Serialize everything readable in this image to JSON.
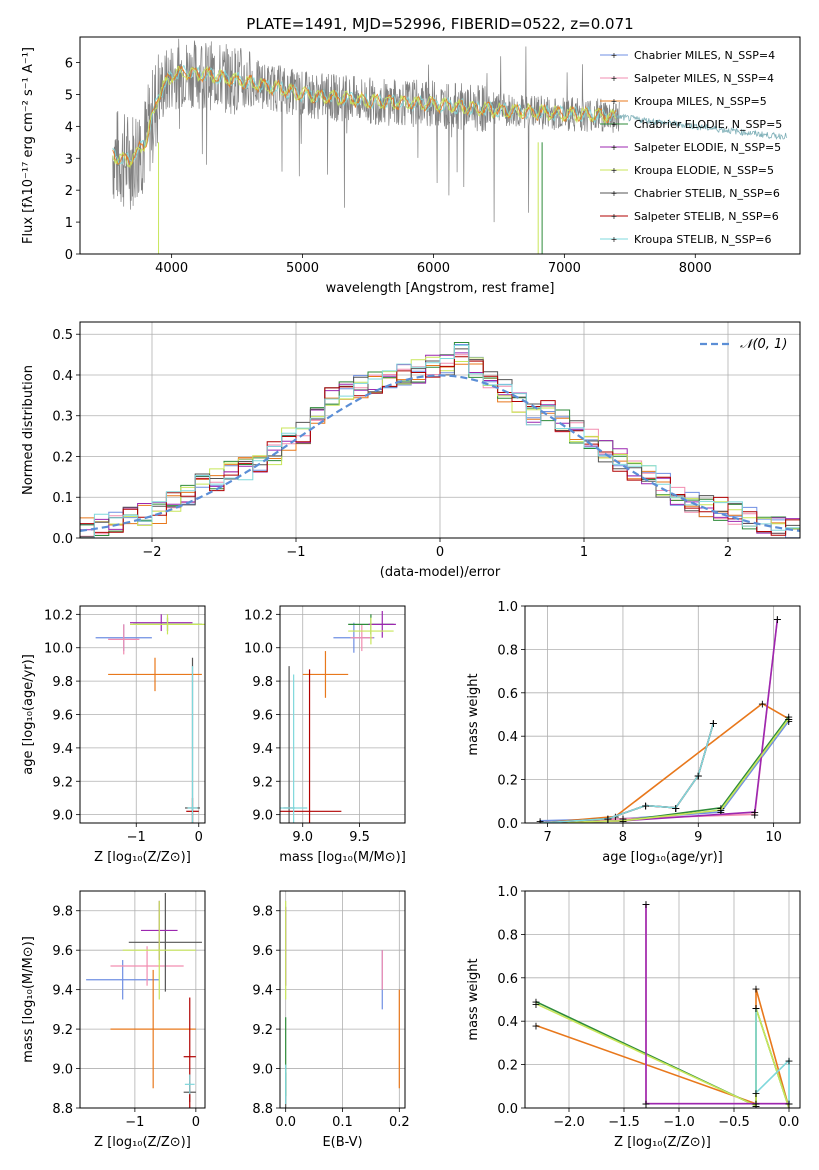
{
  "colors": [
    "#6f8fe3",
    "#f28db0",
    "#e8781c",
    "#2e8b3a",
    "#9c27b0",
    "#c8e65a",
    "#555555",
    "#b00000",
    "#7fd8dc"
  ],
  "chart_data": [
    {
      "id": "spectrum",
      "type": "line",
      "title": "PLATE=1491, MJD=52996, FIBERID=0522, z=0.071",
      "xlabel": "wavelength [Angstrom, rest frame]",
      "ylabel": "Flux [fλ10⁻¹⁷ erg cm⁻² s⁻¹ A⁻¹]",
      "xlim": [
        3300,
        8800
      ],
      "ylim": [
        0,
        6.8
      ],
      "xticks": [
        "4000",
        "5000",
        "6000",
        "7000",
        "8000"
      ],
      "yticks": [
        "0",
        "1",
        "2",
        "3",
        "4",
        "5",
        "6"
      ],
      "legend": [
        "Chabrier MILES, N_SSP=4",
        "Salpeter MILES, N_SSP=4",
        "Kroupa MILES, N_SSP=5",
        "Chabrier ELODIE, N_SSP=5",
        "Salpeter ELODIE, N_SSP=5",
        "Kroupa ELODIE, N_SSP=5",
        "Chabrier STELIB, N_SSP=6",
        "Salpeter STELIB, N_SSP=6",
        "Kroupa STELIB, N_SSP=6"
      ],
      "legend_loc": "upper right",
      "model_continuum": {
        "x": [
          3550,
          3650,
          3700,
          3800,
          3900,
          4000,
          4100,
          4300,
          4500,
          4800,
          5000,
          5500,
          6000,
          6500,
          7000,
          7300,
          7400
        ],
        "y": [
          3.1,
          2.9,
          3.0,
          3.5,
          5.0,
          5.6,
          5.7,
          5.6,
          5.45,
          5.2,
          5.0,
          4.8,
          4.7,
          4.5,
          4.4,
          4.35,
          4.3
        ]
      },
      "observed_extended": {
        "x": [
          7400,
          7600,
          7800,
          8000,
          8200,
          8400,
          8600,
          8700
        ],
        "y": [
          4.3,
          4.2,
          4.1,
          4.0,
          3.9,
          3.8,
          3.7,
          3.7
        ]
      }
    },
    {
      "id": "residuals",
      "type": "line",
      "xlabel": "(data-model)/error",
      "ylabel": "Normed distribution",
      "xlim": [
        -2.5,
        2.5
      ],
      "ylim": [
        0,
        0.53
      ],
      "xticks": [
        "−2",
        "−1",
        "0",
        "1",
        "2"
      ],
      "yticks": [
        "0.0",
        "0.1",
        "0.2",
        "0.3",
        "0.4",
        "0.5"
      ],
      "legend": [
        "𝒩(0, 1)"
      ],
      "legend_loc": "upper right",
      "histogram_centers": [
        -2.45,
        -2.35,
        -2.25,
        -2.15,
        -2.05,
        -1.95,
        -1.85,
        -1.75,
        -1.65,
        -1.55,
        -1.45,
        -1.35,
        -1.25,
        -1.15,
        -1.05,
        -0.95,
        -0.85,
        -0.75,
        -0.65,
        -0.55,
        -0.45,
        -0.35,
        -0.25,
        -0.15,
        -0.05,
        0.05,
        0.15,
        0.25,
        0.35,
        0.45,
        0.55,
        0.65,
        0.75,
        0.85,
        0.95,
        1.05,
        1.15,
        1.25,
        1.35,
        1.45,
        1.55,
        1.65,
        1.75,
        1.85,
        1.95,
        2.05,
        2.15,
        2.25,
        2.35,
        2.45
      ],
      "histogram_values": [
        0.02,
        0.035,
        0.04,
        0.048,
        0.055,
        0.065,
        0.09,
        0.11,
        0.13,
        0.14,
        0.16,
        0.17,
        0.19,
        0.21,
        0.24,
        0.26,
        0.3,
        0.34,
        0.36,
        0.37,
        0.38,
        0.39,
        0.4,
        0.41,
        0.42,
        0.43,
        0.45,
        0.42,
        0.39,
        0.36,
        0.33,
        0.3,
        0.31,
        0.29,
        0.26,
        0.24,
        0.21,
        0.19,
        0.17,
        0.15,
        0.13,
        0.11,
        0.09,
        0.08,
        0.07,
        0.06,
        0.05,
        0.04,
        0.035,
        0.03
      ]
    },
    {
      "id": "age-vs-z",
      "type": "scatter",
      "xlabel": "Z [log₁₀(Z/Z⊙)]",
      "ylabel": "age  [log₁₀(age/yr)]",
      "xlim": [
        -1.9,
        0.1
      ],
      "ylim": [
        8.95,
        10.25
      ],
      "xticks": [
        "−1",
        "0"
      ],
      "xtick_values": [
        -1,
        0
      ],
      "yticks": [
        "9.0",
        "9.2",
        "9.4",
        "9.6",
        "9.8",
        "10.0",
        "10.2"
      ],
      "points": [
        {
          "x": -1.2,
          "y": 10.06,
          "xe": 0.45,
          "ye": 0.08,
          "c": 0
        },
        {
          "x": -1.2,
          "y": 10.05,
          "xe": 0.25,
          "ye": 0.09,
          "c": 1
        },
        {
          "x": -0.7,
          "y": 9.84,
          "xe": 0.75,
          "ye": 0.1,
          "c": 2
        },
        {
          "x": -0.5,
          "y": 10.14,
          "xe": 0.55,
          "ye": 0.04,
          "c": 3
        },
        {
          "x": -0.6,
          "y": 10.15,
          "xe": 0.5,
          "ye": 0.05,
          "c": 4
        },
        {
          "x": -0.5,
          "y": 10.14,
          "xe": 0.6,
          "ye": 0.06,
          "c": 5
        },
        {
          "x": -0.1,
          "y": 9.04,
          "xe": 0.12,
          "ye": 0.9,
          "c": 6
        },
        {
          "x": -0.1,
          "y": 9.02,
          "xe": 0.1,
          "ye": 0.08,
          "c": 7
        },
        {
          "x": -0.1,
          "y": 9.04,
          "xe": 0.08,
          "ye": 0.85,
          "c": 8
        }
      ]
    },
    {
      "id": "age-vs-mass",
      "type": "scatter",
      "xlabel": "mass [log₁₀(M/M⊙)]",
      "ylabel": "",
      "xlim": [
        8.8,
        9.9
      ],
      "ylim": [
        8.95,
        10.25
      ],
      "xticks": [
        "9.0",
        "9.5"
      ],
      "xtick_values": [
        9.0,
        9.5
      ],
      "yticks": [
        "9.0",
        "9.2",
        "9.4",
        "9.6",
        "9.8",
        "10.0",
        "10.2"
      ],
      "points": [
        {
          "x": 9.45,
          "y": 10.06,
          "xe": 0.18,
          "ye": 0.09,
          "c": 0
        },
        {
          "x": 9.52,
          "y": 10.06,
          "xe": 0.1,
          "ye": 0.08,
          "c": 1
        },
        {
          "x": 9.2,
          "y": 9.84,
          "xe": 0.2,
          "ye": 0.14,
          "c": 2
        },
        {
          "x": 9.6,
          "y": 10.14,
          "xe": 0.2,
          "ye": 0.06,
          "c": 3
        },
        {
          "x": 9.7,
          "y": 10.14,
          "xe": 0.12,
          "ye": 0.08,
          "c": 4
        },
        {
          "x": 9.6,
          "y": 10.1,
          "xe": 0.2,
          "ye": 0.08,
          "c": 5
        },
        {
          "x": 8.88,
          "y": 9.04,
          "xe": 0.05,
          "ye": 0.85,
          "c": 6
        },
        {
          "x": 9.06,
          "y": 9.02,
          "xe": 0.28,
          "ye": 0.85,
          "c": 7
        },
        {
          "x": 8.92,
          "y": 9.04,
          "xe": 0.12,
          "ye": 0.8,
          "c": 8
        }
      ]
    },
    {
      "id": "mass-weight-vs-age",
      "type": "line",
      "xlabel": "age  [log₁₀(age/yr)]",
      "ylabel": "mass weight",
      "xlim": [
        6.7,
        10.35
      ],
      "ylim": [
        0,
        1.0
      ],
      "xticks": [
        "7",
        "8",
        "9",
        "10"
      ],
      "xtick_values": [
        7,
        8,
        9,
        10
      ],
      "yticks": [
        "0.0",
        "0.2",
        "0.4",
        "0.6",
        "0.8",
        "1.0"
      ],
      "series": [
        {
          "c": 0,
          "x": [
            6.9,
            8.0,
            9.3,
            10.2
          ],
          "y": [
            0.01,
            0.02,
            0.05,
            0.47
          ]
        },
        {
          "c": 1,
          "x": [
            6.9,
            8.0,
            9.75,
            10.05
          ],
          "y": [
            0.0,
            0.02,
            0.04,
            0.94
          ]
        },
        {
          "c": 2,
          "x": [
            6.9,
            7.9,
            9.85,
            10.2
          ],
          "y": [
            0.0,
            0.03,
            0.55,
            0.48
          ]
        },
        {
          "c": 3,
          "x": [
            6.9,
            8.0,
            9.3,
            10.2
          ],
          "y": [
            0.0,
            0.01,
            0.07,
            0.49
          ]
        },
        {
          "c": 4,
          "x": [
            6.9,
            8.0,
            9.75,
            10.05
          ],
          "y": [
            0.0,
            0.01,
            0.05,
            0.94
          ]
        },
        {
          "c": 5,
          "x": [
            6.9,
            8.0,
            9.3,
            10.2
          ],
          "y": [
            0.0,
            0.01,
            0.06,
            0.48
          ]
        },
        {
          "c": 6,
          "x": [
            6.9,
            7.8,
            8.3,
            8.7,
            9.0,
            9.2
          ],
          "y": [
            0.0,
            0.02,
            0.08,
            0.07,
            0.22,
            0.46
          ]
        },
        {
          "c": 7,
          "x": [
            6.9,
            7.8,
            8.3,
            8.7,
            9.0,
            9.2
          ],
          "y": [
            0.0,
            0.02,
            0.08,
            0.07,
            0.22,
            0.46
          ]
        },
        {
          "c": 8,
          "x": [
            6.9,
            7.8,
            8.3,
            8.7,
            9.0,
            9.2
          ],
          "y": [
            0.0,
            0.02,
            0.08,
            0.07,
            0.22,
            0.46
          ]
        }
      ]
    },
    {
      "id": "mass-vs-z",
      "type": "scatter",
      "xlabel": "Z [log₁₀(Z/Z⊙)]",
      "ylabel": "mass [log₁₀(M/M⊙)]",
      "xlim": [
        -1.9,
        0.15
      ],
      "ylim": [
        8.8,
        9.9
      ],
      "xticks": [
        "−1",
        "0"
      ],
      "xtick_values": [
        -1,
        0
      ],
      "yticks": [
        "8.8",
        "9.0",
        "9.2",
        "9.4",
        "9.6",
        "9.8"
      ],
      "points": [
        {
          "x": -1.2,
          "y": 9.45,
          "xe": 0.6,
          "ye": 0.1,
          "c": 0
        },
        {
          "x": -0.8,
          "y": 9.52,
          "xe": 0.6,
          "ye": 0.1,
          "c": 1
        },
        {
          "x": -0.7,
          "y": 9.2,
          "xe": 0.7,
          "ye": 0.3,
          "c": 2
        },
        {
          "x": -0.5,
          "y": 9.64,
          "xe": 0.6,
          "ye": 0.25,
          "c": 6
        },
        {
          "x": -0.6,
          "y": 9.7,
          "xe": 0.3,
          "ye": 0.15,
          "c": 4
        },
        {
          "x": -0.6,
          "y": 9.6,
          "xe": 0.6,
          "ye": 0.25,
          "c": 5
        },
        {
          "x": -0.1,
          "y": 8.88,
          "xe": 0.1,
          "ye": 0.05,
          "c": 6
        },
        {
          "x": -0.1,
          "y": 9.06,
          "xe": 0.1,
          "ye": 0.3,
          "c": 7
        },
        {
          "x": -0.1,
          "y": 8.92,
          "xe": 0.08,
          "ye": 0.05,
          "c": 8
        }
      ]
    },
    {
      "id": "mass-vs-ebv",
      "type": "scatter",
      "xlabel": "E(B-V)",
      "ylabel": "",
      "xlim": [
        -0.01,
        0.21
      ],
      "ylim": [
        8.8,
        9.9
      ],
      "xticks": [
        "0.0",
        "0.1",
        "0.2"
      ],
      "xtick_values": [
        0.0,
        0.1,
        0.2
      ],
      "yticks": [
        "8.8",
        "9.0",
        "9.2",
        "9.4",
        "9.6",
        "9.8"
      ],
      "points": [
        {
          "x": 0.17,
          "y": 9.45,
          "xe": 0.0,
          "ye": 0.15,
          "c": 0
        },
        {
          "x": 0.17,
          "y": 9.5,
          "xe": 0.0,
          "ye": 0.1,
          "c": 1
        },
        {
          "x": 0.2,
          "y": 9.15,
          "xe": 0.0,
          "ye": 0.25,
          "c": 2
        },
        {
          "x": 0.0,
          "y": 9.62,
          "xe": 0.0,
          "ye": 0.2,
          "c": 4
        },
        {
          "x": 0.0,
          "y": 9.6,
          "xe": 0.0,
          "ye": 0.25,
          "c": 5
        },
        {
          "x": 0.0,
          "y": 8.88,
          "xe": 0.0,
          "ye": 0.1,
          "c": 6
        },
        {
          "x": 0.0,
          "y": 9.06,
          "xe": 0.0,
          "ye": 0.2,
          "c": 3
        },
        {
          "x": 0.0,
          "y": 8.92,
          "xe": 0.0,
          "ye": 0.1,
          "c": 8
        }
      ]
    },
    {
      "id": "mass-weight-vs-z",
      "type": "line",
      "xlabel": "Z [log₁₀(Z/Z⊙)]",
      "ylabel": "mass weight",
      "xlim": [
        -2.4,
        0.1
      ],
      "ylim": [
        0,
        1.0
      ],
      "xticks": [
        "−2.0",
        "−1.5",
        "−1.0",
        "−0.5",
        "0.0"
      ],
      "xtick_values": [
        -2.0,
        -1.5,
        -1.0,
        -0.5,
        0.0
      ],
      "yticks": [
        "0.0",
        "0.2",
        "0.4",
        "0.6",
        "0.8",
        "1.0"
      ],
      "series": [
        {
          "c": 2,
          "x": [
            -2.3,
            -0.3,
            -0.3,
            0.0
          ],
          "y": [
            0.38,
            0.02,
            0.55,
            0.0
          ]
        },
        {
          "c": 1,
          "x": [
            -1.3,
            -1.3,
            -0.3,
            0.0
          ],
          "y": [
            0.94,
            0.02,
            0.02,
            0.02
          ]
        },
        {
          "c": 3,
          "x": [
            -2.3,
            -0.3,
            -0.3,
            0.0
          ],
          "y": [
            0.49,
            0.01,
            0.46,
            0.0
          ]
        },
        {
          "c": 5,
          "x": [
            -2.3,
            -0.3,
            -0.3,
            0.0
          ],
          "y": [
            0.48,
            0.01,
            0.46,
            0.0
          ]
        },
        {
          "c": 8,
          "x": [
            -0.3,
            -0.3,
            0.0,
            0.0
          ],
          "y": [
            0.46,
            0.07,
            0.22,
            0.02
          ]
        },
        {
          "c": 4,
          "x": [
            -1.3,
            -1.3,
            -0.3,
            0.0
          ],
          "y": [
            0.94,
            0.02,
            0.02,
            0.02
          ]
        }
      ]
    }
  ]
}
